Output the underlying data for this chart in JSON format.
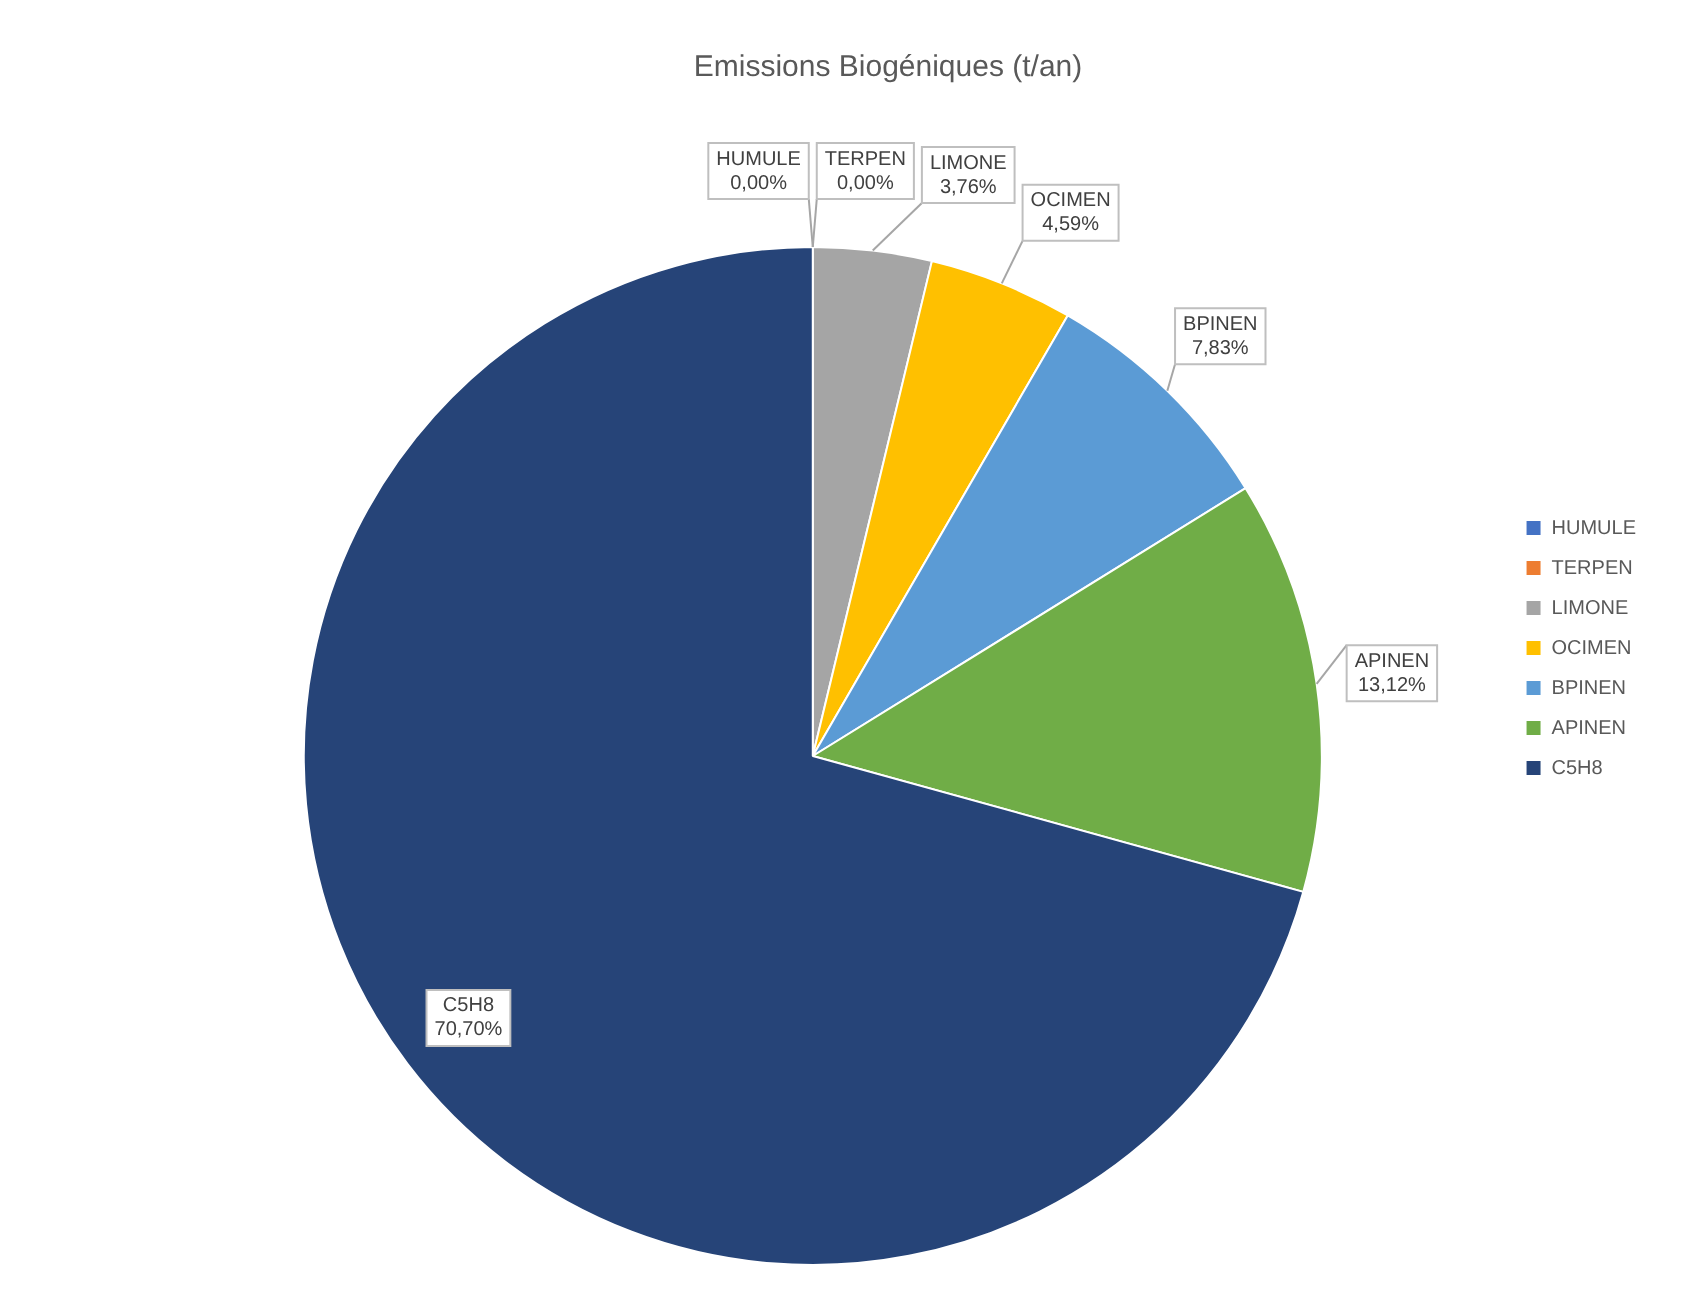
{
  "chart_data": {
    "type": "pie",
    "title": "Emissions Biogéniques (t/an)",
    "categories": [
      "HUMULE",
      "TERPEN",
      "LIMONE",
      "OCIMEN",
      "BPINEN",
      "APINEN",
      "C5H8"
    ],
    "values": [
      0,
      0,
      3.76,
      4.59,
      7.83,
      13.12,
      70.7
    ],
    "value_labels": [
      "0,00%",
      "0,00%",
      "3,76%",
      "4,59%",
      "7,83%",
      "13,12%",
      "70,70%"
    ],
    "colors": [
      "#4472c4",
      "#ed7d31",
      "#a5a5a5",
      "#ffc000",
      "#5b9bd5",
      "#70ad47",
      "#264478"
    ],
    "legend": "right"
  }
}
